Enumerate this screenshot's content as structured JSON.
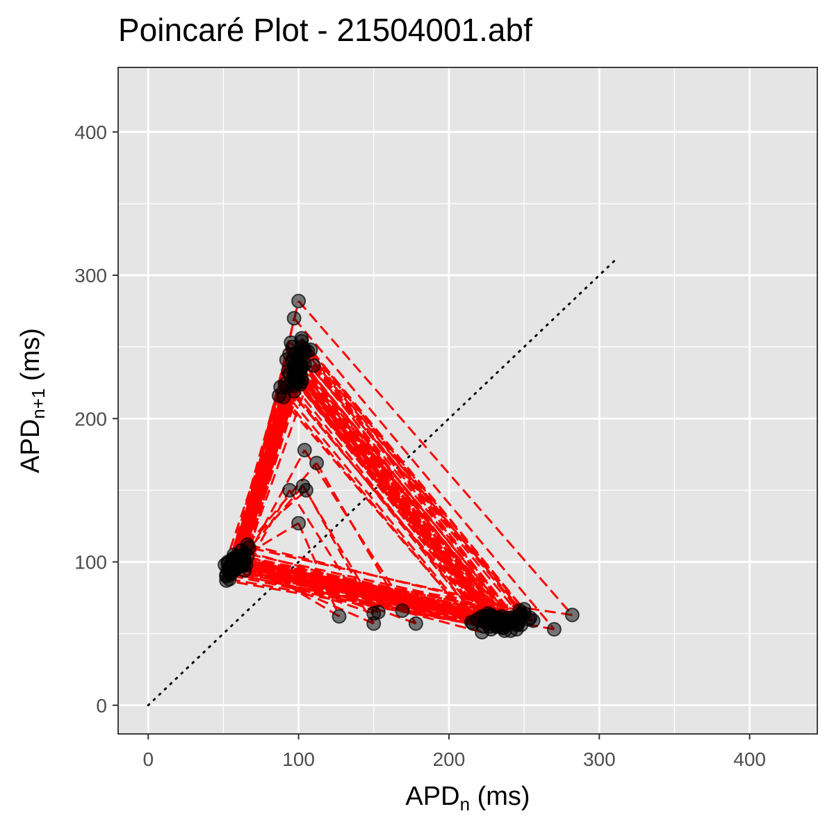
{
  "chart_data": {
    "type": "scatter",
    "title": "Poincaré Plot - 21504001.abf",
    "xlabel": {
      "main": "APD",
      "sub": "n",
      "suffix": " (ms)"
    },
    "ylabel": {
      "main": "APD",
      "sub": "n+1",
      "suffix": " (ms)"
    },
    "xlim": [
      -20,
      445
    ],
    "ylim": [
      -20,
      445
    ],
    "x_ticks": [
      0,
      100,
      200,
      300,
      400
    ],
    "y_ticks": [
      0,
      100,
      200,
      300,
      400
    ],
    "grid": true,
    "identity_line": {
      "from": [
        0,
        0
      ],
      "to": [
        312,
        312
      ],
      "style": "dotted"
    },
    "colors": {
      "panel": "#e5e5e5",
      "grid": "#ffffff",
      "trajectory": "#ff0000",
      "point": "#000000",
      "identity": "#000000"
    },
    "series": [
      {
        "values": [
          [
            52,
            90
          ],
          [
            90,
            215
          ],
          [
            215,
            58
          ],
          [
            58,
            100
          ],
          [
            100,
            282
          ],
          [
            282,
            63
          ],
          [
            63,
            97
          ],
          [
            97,
            270
          ],
          [
            270,
            53
          ],
          [
            53,
            95
          ],
          [
            95,
            253
          ],
          [
            253,
            60
          ],
          [
            60,
            102
          ],
          [
            102,
            254
          ],
          [
            254,
            61
          ],
          [
            61,
            100
          ],
          [
            100,
            240
          ],
          [
            240,
            57
          ],
          [
            57,
            98
          ],
          [
            98,
            235
          ],
          [
            235,
            62
          ],
          [
            62,
            104
          ],
          [
            104,
            246
          ],
          [
            246,
            58
          ],
          [
            58,
            97
          ],
          [
            97,
            231
          ],
          [
            231,
            55
          ],
          [
            55,
            98
          ],
          [
            98,
            228
          ],
          [
            228,
            53
          ],
          [
            53,
            99
          ],
          [
            99,
            225
          ],
          [
            225,
            60
          ],
          [
            60,
            101
          ],
          [
            101,
            236
          ],
          [
            236,
            56
          ],
          [
            56,
            100
          ],
          [
            100,
            243
          ],
          [
            243,
            59
          ],
          [
            59,
            103
          ],
          [
            103,
            247
          ],
          [
            247,
            63
          ],
          [
            63,
            104
          ],
          [
            104,
            238
          ],
          [
            238,
            58
          ],
          [
            58,
            99
          ],
          [
            99,
            233
          ],
          [
            233,
            57
          ],
          [
            57,
            101
          ],
          [
            101,
            241
          ],
          [
            241,
            61
          ],
          [
            61,
            97
          ],
          [
            97,
            223
          ],
          [
            223,
            55
          ],
          [
            55,
            92
          ],
          [
            92,
            222
          ],
          [
            222,
            62
          ],
          [
            62,
            108
          ],
          [
            108,
            248
          ],
          [
            248,
            64
          ],
          [
            64,
            106
          ],
          [
            106,
            247
          ],
          [
            247,
            66
          ],
          [
            66,
            112
          ],
          [
            112,
            169
          ],
          [
            169,
            66
          ],
          [
            66,
            104
          ],
          [
            104,
            178
          ],
          [
            178,
            57
          ],
          [
            57,
            105
          ],
          [
            105,
            150
          ],
          [
            150,
            64
          ],
          [
            64,
            94
          ],
          [
            94,
            150
          ],
          [
            150,
            57
          ],
          [
            57,
            100
          ],
          [
            100,
            127
          ],
          [
            127,
            62
          ],
          [
            62,
            103
          ],
          [
            103,
            153
          ],
          [
            153,
            65
          ],
          [
            65,
            98
          ],
          [
            98,
            226
          ],
          [
            226,
            62
          ],
          [
            62,
            100
          ],
          [
            100,
            230
          ],
          [
            230,
            59
          ],
          [
            59,
            102
          ],
          [
            102,
            236
          ],
          [
            236,
            60
          ],
          [
            60,
            97
          ],
          [
            97,
            227
          ],
          [
            227,
            55
          ],
          [
            55,
            92
          ],
          [
            92,
            241
          ],
          [
            241,
            52
          ],
          [
            52,
            87
          ],
          [
            87,
            216
          ],
          [
            216,
            57
          ],
          [
            57,
            97
          ],
          [
            97,
            219
          ],
          [
            219,
            60
          ],
          [
            60,
            99
          ],
          [
            99,
            233
          ],
          [
            233,
            56
          ],
          [
            56,
            102
          ],
          [
            102,
            236
          ],
          [
            236,
            54
          ],
          [
            54,
            94
          ],
          [
            94,
            245
          ],
          [
            245,
            53
          ],
          [
            53,
            100
          ],
          [
            100,
            233
          ],
          [
            233,
            58
          ],
          [
            58,
            101
          ],
          [
            101,
            232
          ],
          [
            232,
            55
          ],
          [
            55,
            96
          ],
          [
            96,
            240
          ],
          [
            240,
            61
          ],
          [
            61,
            97
          ],
          [
            97,
            237
          ],
          [
            237,
            52
          ],
          [
            52,
            91
          ],
          [
            91,
            224
          ],
          [
            224,
            58
          ],
          [
            58,
            99
          ],
          [
            99,
            237
          ],
          [
            237,
            59
          ],
          [
            59,
            102
          ],
          [
            102,
            228
          ],
          [
            228,
            63
          ],
          [
            63,
            102
          ],
          [
            102,
            250
          ],
          [
            250,
            64
          ],
          [
            64,
            100
          ],
          [
            100,
            236
          ],
          [
            236,
            54
          ],
          [
            54,
            88
          ],
          [
            88,
            222
          ],
          [
            222,
            51
          ],
          [
            51,
            98
          ],
          [
            98,
            245
          ],
          [
            245,
            56
          ],
          [
            56,
            93
          ],
          [
            93,
            233
          ],
          [
            233,
            61
          ],
          [
            61,
            101
          ],
          [
            101,
            239
          ],
          [
            239,
            59
          ],
          [
            59,
            96
          ],
          [
            96,
            250
          ],
          [
            250,
            67
          ],
          [
            67,
            110
          ],
          [
            110,
            237
          ],
          [
            237,
            57
          ],
          [
            57,
            94
          ],
          [
            94,
            231
          ],
          [
            231,
            56
          ],
          [
            56,
            98
          ],
          [
            98,
            228
          ],
          [
            228,
            62
          ],
          [
            62,
            102
          ],
          [
            102,
            226
          ],
          [
            226,
            64
          ],
          [
            64,
            101
          ],
          [
            101,
            224
          ],
          [
            224,
            62
          ],
          [
            62,
            98
          ],
          [
            98,
            232
          ],
          [
            232,
            60
          ],
          [
            60,
            101
          ],
          [
            101,
            246
          ],
          [
            246,
            57
          ],
          [
            57,
            102
          ],
          [
            102,
            256
          ],
          [
            256,
            59
          ],
          [
            59,
            104
          ],
          [
            104,
            248
          ],
          [
            248,
            56
          ],
          [
            56,
            98
          ],
          [
            98,
            236
          ],
          [
            236,
            60
          ]
        ]
      }
    ]
  }
}
